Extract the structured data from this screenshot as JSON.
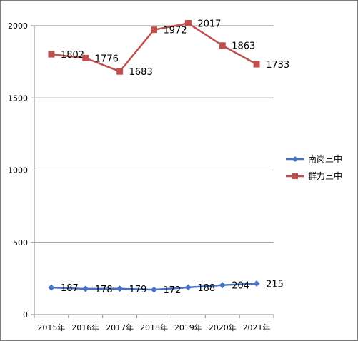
{
  "chart_data": {
    "type": "line",
    "categories": [
      "2015年",
      "2016年",
      "2017年",
      "2018年",
      "2019年",
      "2020年",
      "2021年"
    ],
    "ylim": [
      0,
      2000
    ],
    "yticks": [
      "0",
      "500",
      "1000",
      "1500",
      "2000"
    ],
    "grid": true,
    "legend": "right",
    "series": [
      {
        "name": "南岗三中",
        "values": [
          187,
          178,
          179,
          172,
          188,
          204,
          215
        ],
        "color": "#4472c4",
        "marker": "diamond"
      },
      {
        "name": "群力三中",
        "values": [
          1802,
          1776,
          1683,
          1972,
          2017,
          1863,
          1733
        ],
        "color": "#c0504d",
        "marker": "square"
      }
    ]
  }
}
